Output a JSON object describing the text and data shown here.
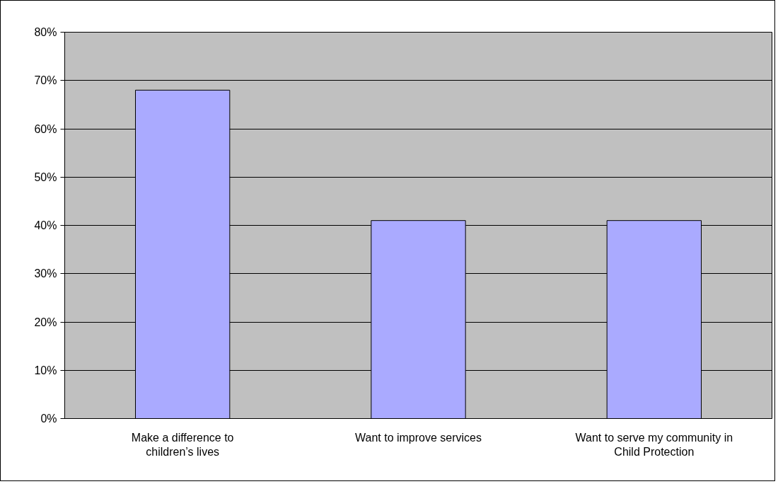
{
  "chart_data": {
    "type": "bar",
    "categories": [
      "Make a difference to children’s lives",
      "Want to improve services",
      "Want to serve my community in Child Protection"
    ],
    "values": [
      68,
      41,
      41
    ],
    "color": "#aaaaff",
    "ylim": [
      0,
      80
    ],
    "yticks": [
      {
        "value": 0,
        "label": "0%"
      },
      {
        "value": 10,
        "label": "10%"
      },
      {
        "value": 20,
        "label": "20%"
      },
      {
        "value": 30,
        "label": "30%"
      },
      {
        "value": 40,
        "label": "40%"
      },
      {
        "value": 50,
        "label": "50%"
      },
      {
        "value": 60,
        "label": "60%"
      },
      {
        "value": 70,
        "label": "70%"
      },
      {
        "value": 80,
        "label": "80%"
      }
    ],
    "grid": "y"
  }
}
